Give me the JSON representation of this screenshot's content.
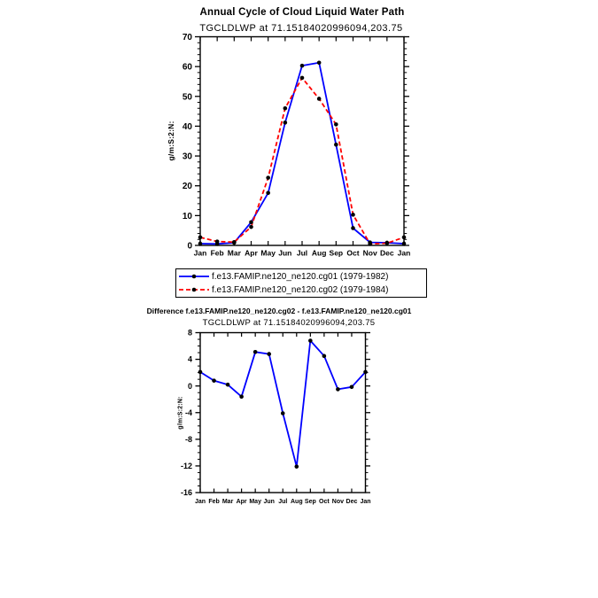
{
  "page": {
    "background": "#ffffff"
  },
  "chart_data": [
    {
      "type": "line",
      "title": "Annual Cycle of Cloud Liquid Water Path",
      "subtitle": "TGCLDLWP at 71.15184020996094,203.75",
      "ylabel": "g/m:S:2:N:",
      "xlabel": "",
      "categories": [
        "Jan",
        "Feb",
        "Mar",
        "Apr",
        "May",
        "Jun",
        "Jul",
        "Aug",
        "Sep",
        "Oct",
        "Nov",
        "Dec",
        "Jan"
      ],
      "ylim": [
        0,
        70
      ],
      "ytick_major": 10,
      "ytick_minor": 2,
      "grid": false,
      "legend_position": "below-chart",
      "axis_color": "#000000",
      "series": [
        {
          "name": "f.e13.FAMIP.ne120_ne120.cg01 (1979-1982)",
          "color": "#0000ff",
          "line_style": "solid",
          "marker": "filled-circle",
          "marker_color": "#000000",
          "values": [
            0.6,
            0.5,
            0.9,
            7.8,
            17.6,
            41.2,
            60.3,
            61.3,
            33.8,
            5.8,
            1.0,
            0.9,
            0.6
          ]
        },
        {
          "name": "f.e13.FAMIP.ne120_ne120.cg02 (1979-1984)",
          "color": "#ff0000",
          "line_style": "dashed",
          "marker": "filled-circle",
          "marker_color": "#000000",
          "values": [
            2.7,
            1.3,
            1.1,
            6.2,
            22.7,
            46.0,
            56.2,
            49.2,
            40.6,
            10.3,
            0.5,
            0.75,
            2.7
          ]
        }
      ]
    },
    {
      "type": "line",
      "title": "Difference f.e13.FAMIP.ne120_ne120.cg02 - f.e13.FAMIP.ne120_ne120.cg01",
      "subtitle": "TGCLDLWP at 71.15184020996094,203.75",
      "ylabel": "g/m:S:2:N:",
      "xlabel": "",
      "categories": [
        "Jan",
        "Feb",
        "Mar",
        "Apr",
        "May",
        "Jun",
        "Jul",
        "Aug",
        "Sep",
        "Oct",
        "Nov",
        "Dec",
        "Jan"
      ],
      "ylim": [
        -16,
        8
      ],
      "ytick_major": 4,
      "ytick_minor": 1,
      "grid": false,
      "axis_color": "#000000",
      "series": [
        {
          "name": "difference cg02 - cg01",
          "color": "#0000ff",
          "line_style": "solid",
          "marker": "filled-circle",
          "marker_color": "#000000",
          "values": [
            2.1,
            0.8,
            0.2,
            -1.6,
            5.1,
            4.8,
            -4.1,
            -12.1,
            6.8,
            4.5,
            -0.5,
            -0.15,
            2.1
          ]
        }
      ]
    }
  ]
}
